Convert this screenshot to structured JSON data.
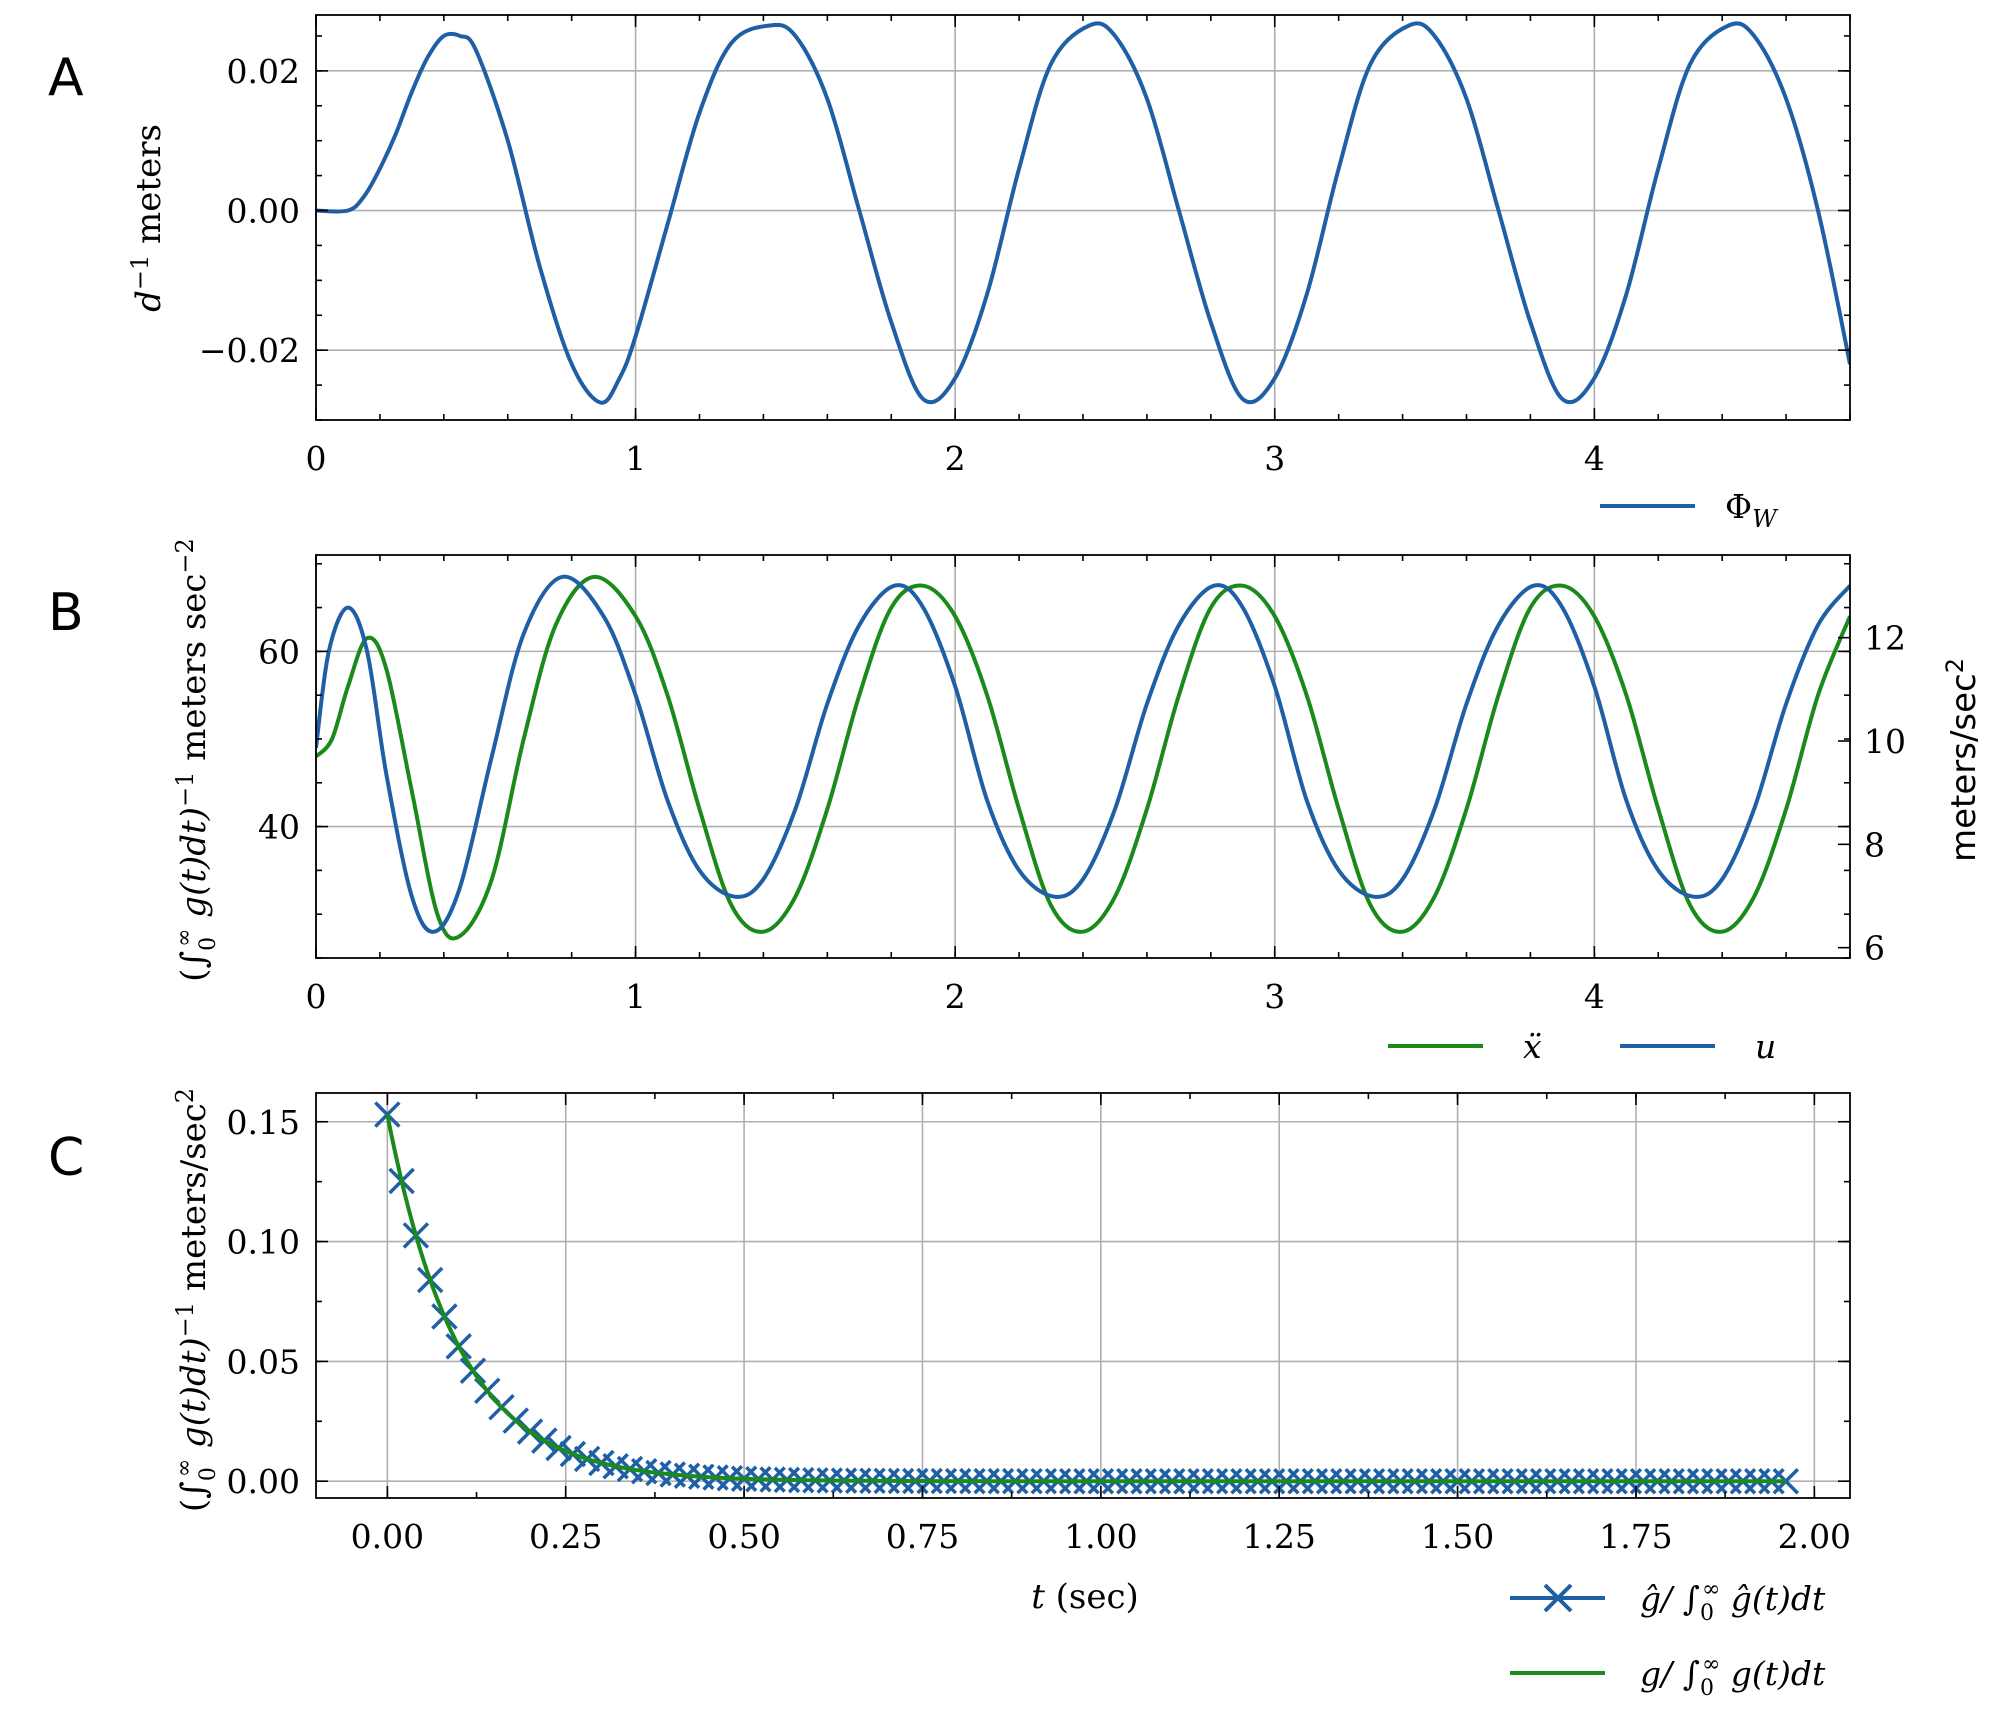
{
  "chart_data": [
    {
      "panel": "A",
      "type": "line",
      "ylabel": "d^-1 meters",
      "xlim": [
        0,
        4.8
      ],
      "ylim": [
        -0.03,
        0.028
      ],
      "xticks": [
        "0",
        "1",
        "2",
        "3",
        "4"
      ],
      "xtick_values": [
        0,
        1,
        2,
        3,
        4
      ],
      "yticks": [
        "0.02",
        "0.00",
        "−0.02"
      ],
      "ytick_values": [
        0.02,
        0.0,
        -0.02
      ],
      "grid": true,
      "legend": {
        "placement": "below-right",
        "entries": [
          "Φ_W"
        ]
      },
      "series": [
        {
          "name": "Φ_W",
          "color": "#1f5fa6",
          "description": "sinusoid, amplitude ~0.026, period 1 s, flat near 0 until t=0.1",
          "x": [
            0,
            0.1,
            0.15,
            0.2,
            0.25,
            0.3,
            0.35,
            0.4,
            0.45,
            0.5,
            0.6,
            0.7,
            0.8,
            0.89,
            0.95,
            1.0,
            1.1,
            1.2,
            1.3,
            1.42,
            1.5,
            1.6,
            1.7,
            1.8,
            1.9,
            2.0,
            2.1,
            2.2,
            2.3,
            2.42,
            2.5,
            2.6,
            2.7,
            2.8,
            2.9,
            3.0,
            3.1,
            3.2,
            3.3,
            3.42,
            3.5,
            3.6,
            3.7,
            3.8,
            3.9,
            4.0,
            4.1,
            4.2,
            4.3,
            4.42,
            4.5,
            4.6,
            4.7,
            4.8
          ],
          "y": [
            0.0,
            0.0,
            0.002,
            0.006,
            0.011,
            0.017,
            0.022,
            0.025,
            0.025,
            0.023,
            0.01,
            -0.008,
            -0.022,
            -0.0275,
            -0.024,
            -0.018,
            -0.002,
            0.014,
            0.024,
            0.0265,
            0.025,
            0.016,
            0.0,
            -0.016,
            -0.027,
            -0.024,
            -0.012,
            0.006,
            0.021,
            0.0265,
            0.025,
            0.016,
            0.0,
            -0.016,
            -0.027,
            -0.024,
            -0.012,
            0.006,
            0.021,
            0.0265,
            0.025,
            0.016,
            0.0,
            -0.016,
            -0.027,
            -0.024,
            -0.012,
            0.006,
            0.021,
            0.0265,
            0.025,
            0.016,
            0.0,
            -0.022
          ]
        }
      ]
    },
    {
      "panel": "B",
      "type": "line",
      "ylabel_left": "(∫₀^∞ g(t)dt)^−1 meters sec^−2",
      "ylabel_right": "meters/sec²",
      "xlim": [
        0,
        4.8
      ],
      "ylim_left": [
        25,
        71
      ],
      "ylim_right": [
        5.8,
        13.6
      ],
      "xticks": [
        "0",
        "1",
        "2",
        "3",
        "4"
      ],
      "xtick_values": [
        0,
        1,
        2,
        3,
        4
      ],
      "yticks_left": [
        "60",
        "40"
      ],
      "ytick_values_left": [
        60,
        40
      ],
      "yticks_right": [
        "12",
        "10",
        "8",
        "6"
      ],
      "ytick_values_right": [
        12,
        10,
        8,
        6
      ],
      "grid": true,
      "legend": {
        "placement": "below-right",
        "entries": [
          "ẍ",
          "u"
        ]
      },
      "series": [
        {
          "name": "ẍ",
          "axis": "left",
          "color": "#1a8a1a",
          "x": [
            0,
            0.05,
            0.1,
            0.16,
            0.22,
            0.3,
            0.38,
            0.45,
            0.55,
            0.65,
            0.75,
            0.87,
            1.0,
            1.1,
            1.2,
            1.3,
            1.4,
            1.5,
            1.6,
            1.7,
            1.8,
            1.9,
            2.0,
            2.1,
            2.2,
            2.3,
            2.4,
            2.5,
            2.6,
            2.7,
            2.8,
            2.9,
            3.0,
            3.1,
            3.2,
            3.3,
            3.4,
            3.5,
            3.6,
            3.7,
            3.8,
            3.9,
            4.0,
            4.1,
            4.2,
            4.3,
            4.4,
            4.5,
            4.6,
            4.7,
            4.8
          ],
          "y": [
            48,
            50,
            56,
            61.5,
            58,
            44,
            30,
            27.5,
            34,
            50,
            63,
            68.5,
            64,
            55,
            42,
            31,
            28,
            32,
            42,
            55,
            65,
            67.5,
            64,
            55,
            42,
            31,
            28,
            32,
            42,
            55,
            65,
            67.5,
            64,
            55,
            42,
            31,
            28,
            32,
            42,
            55,
            65,
            67.5,
            64,
            55,
            42,
            31,
            28,
            32,
            42,
            55,
            64
          ]
        },
        {
          "name": "u",
          "axis": "left",
          "color": "#1f5fa6",
          "x": [
            0,
            0.04,
            0.1,
            0.16,
            0.22,
            0.3,
            0.37,
            0.45,
            0.55,
            0.65,
            0.77,
            0.9,
            1.0,
            1.1,
            1.2,
            1.31,
            1.4,
            1.5,
            1.6,
            1.7,
            1.81,
            1.9,
            2.0,
            2.1,
            2.2,
            2.31,
            2.4,
            2.5,
            2.6,
            2.7,
            2.81,
            2.9,
            3.0,
            3.1,
            3.2,
            3.31,
            3.4,
            3.5,
            3.6,
            3.7,
            3.81,
            3.9,
            4.0,
            4.1,
            4.2,
            4.31,
            4.4,
            4.5,
            4.6,
            4.7,
            4.8
          ],
          "y": [
            49,
            60,
            65,
            60,
            46,
            32,
            28,
            33,
            48,
            62,
            68.5,
            64,
            55,
            43,
            35,
            32,
            34,
            42,
            54,
            63,
            67.5,
            65,
            56,
            43,
            35,
            32,
            34,
            42,
            54,
            63,
            67.5,
            65,
            56,
            43,
            35,
            32,
            34,
            42,
            54,
            63,
            67.5,
            65,
            56,
            43,
            35,
            32,
            34,
            42,
            54,
            63,
            67.5
          ]
        }
      ]
    },
    {
      "panel": "C",
      "type": "line",
      "xlabel": "t (sec)",
      "ylabel": "(∫₀^∞ g(t)dt)^−1 meters/sec²",
      "xlim": [
        -0.1,
        2.05
      ],
      "ylim": [
        -0.007,
        0.162
      ],
      "xticks": [
        "0.00",
        "0.25",
        "0.50",
        "0.75",
        "1.00",
        "1.25",
        "1.50",
        "1.75",
        "2.00"
      ],
      "xtick_values": [
        0,
        0.25,
        0.5,
        0.75,
        1.0,
        1.25,
        1.5,
        1.75,
        2.0
      ],
      "yticks": [
        "0.15",
        "0.10",
        "0.05",
        "0.00"
      ],
      "ytick_values": [
        0.15,
        0.1,
        0.05,
        0.0
      ],
      "grid": true,
      "legend": {
        "placement": "below-right",
        "entries": [
          "ĝ/ ∫₀^∞ ĝ(t)dt",
          "g/ ∫₀^∞ g(t)dt"
        ]
      },
      "series": [
        {
          "name": "ĝ/ ∫₀^∞ ĝ(t)dt",
          "color": "#1f5fa6",
          "marker": "x",
          "model": "y = 0.153 * exp(-t / 0.1)",
          "x_start": 0.0,
          "x_end": 1.96,
          "x_step": 0.02,
          "y_at_start": 0.153
        },
        {
          "name": "g/ ∫₀^∞ g(t)dt",
          "color": "#1a8a1a",
          "model": "y = 0.153 * exp(-t / 0.1)",
          "x_start": 0.0,
          "x_end": 1.96,
          "y_at_start": 0.153
        }
      ]
    }
  ],
  "panel_letters": [
    "A",
    "B",
    "C"
  ],
  "legend_labels": {
    "a": [
      "Φ",
      "W"
    ],
    "b_green": "ẍ",
    "b_blue": "u",
    "c_blue": [
      "ĝ/ ∫",
      "0",
      "∞",
      " ĝ(t)dt"
    ],
    "c_green": [
      "g/ ∫",
      "0",
      "∞",
      " g(t)dt"
    ]
  },
  "axis_labels": {
    "a_ylabel": [
      "d",
      "−1",
      " meters"
    ],
    "b_ylabel_left": [
      "(∫",
      "0",
      "∞",
      " g(t)dt)",
      "−1",
      " meters sec",
      "−2"
    ],
    "b_ylabel_right": [
      "meters/sec",
      "2"
    ],
    "c_ylabel": [
      "(∫",
      "0",
      "∞",
      " g(t)dt)",
      "−1",
      " meters/sec",
      "2"
    ],
    "c_xlabel": [
      "t",
      " (sec)"
    ]
  }
}
